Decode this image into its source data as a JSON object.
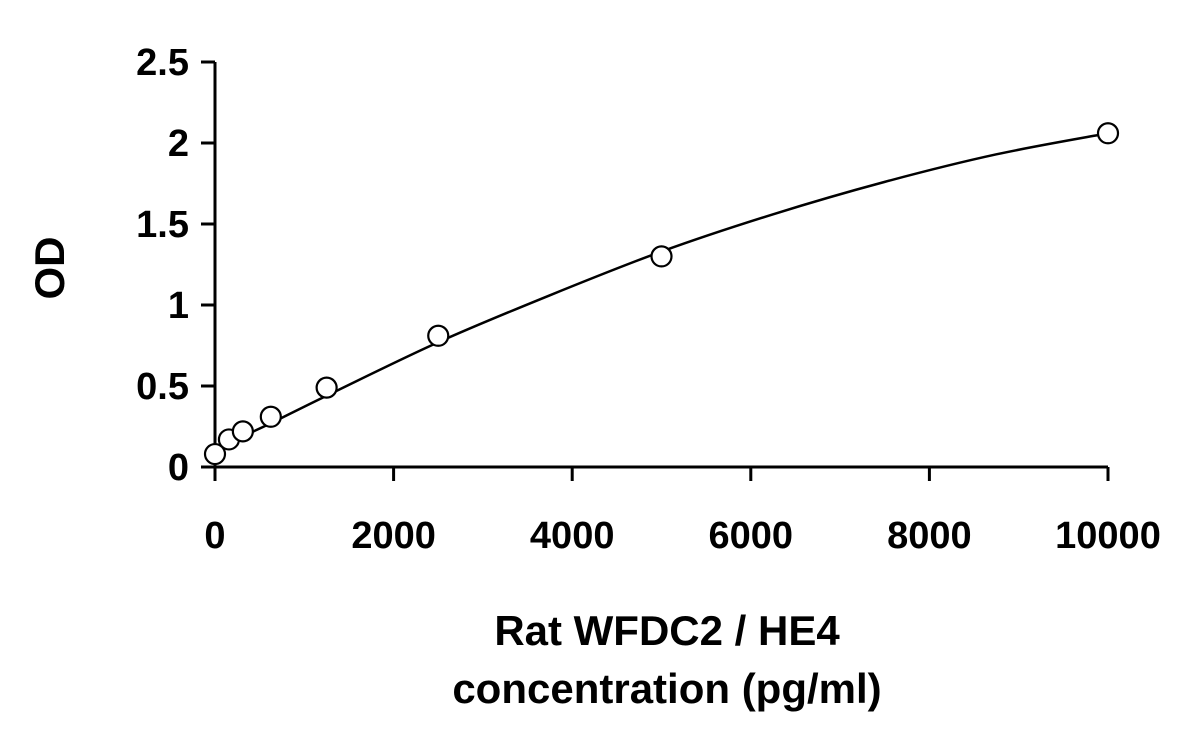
{
  "chart_data": {
    "type": "scatter",
    "title": "",
    "xlabel_lines": [
      "Rat WFDC2 / HE4",
      "concentration (pg/ml)"
    ],
    "ylabel": "OD",
    "xlim": [
      0,
      10000
    ],
    "ylim": [
      0,
      2.5
    ],
    "xticks": [
      0,
      2000,
      4000,
      6000,
      8000,
      10000
    ],
    "xtick_labels": [
      "0",
      "2000",
      "4000",
      "6000",
      "8000",
      "10000"
    ],
    "yticks": [
      0,
      0.5,
      1,
      1.5,
      2,
      2.5
    ],
    "ytick_labels": [
      "0",
      "0.5",
      "1",
      "1.5",
      "2",
      "2.5"
    ],
    "grid": false,
    "legend": "none",
    "series": [
      {
        "marker": "open-circle",
        "color": "#000000",
        "x": [
          0,
          156,
          312,
          625,
          1250,
          2500,
          5000,
          10000
        ],
        "y": [
          0.08,
          0.17,
          0.22,
          0.31,
          0.49,
          0.81,
          1.3,
          2.06
        ]
      }
    ],
    "fit_curve": {
      "color": "#000000",
      "x": [
        0,
        156,
        312,
        625,
        1250,
        2500,
        3750,
        5000,
        6250,
        7500,
        8750,
        10000
      ],
      "y": [
        0.11,
        0.15,
        0.19,
        0.27,
        0.44,
        0.77,
        1.06,
        1.33,
        1.56,
        1.76,
        1.93,
        2.06
      ]
    }
  }
}
